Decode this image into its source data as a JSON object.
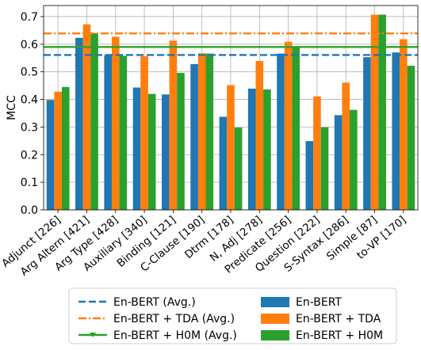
{
  "chart_data": {
    "type": "bar",
    "ylabel": "MCC",
    "xlabel": "",
    "ylim": [
      0,
      0.74
    ],
    "yticks": [
      0.0,
      0.1,
      0.2,
      0.3,
      0.4,
      0.5,
      0.6,
      0.7
    ],
    "ytick_labels": [
      "0.0",
      "0.1",
      "0.2",
      "0.3",
      "0.4",
      "0.5",
      "0.6",
      "0.7"
    ],
    "grid": true,
    "legend_position": "bottom",
    "categories": [
      "Adjunct [226]",
      "Arg Altern [421]",
      "Arg Type [428]",
      "Auxiliary [340]",
      "Binding [121]",
      "C-Clause [190]",
      "Dtrm [178]",
      "N, Adj [278]",
      "Predicate [256]",
      "Question [222]",
      "S-Syntax [286]",
      "Simple [87]",
      "to-VP [170]"
    ],
    "series": [
      {
        "name": "En-BERT",
        "color": "#1f77b4",
        "values": [
          0.398,
          0.623,
          0.561,
          0.443,
          0.418,
          0.528,
          0.337,
          0.439,
          0.566,
          0.249,
          0.343,
          0.553,
          0.57
        ]
      },
      {
        "name": "En-BERT + TDA",
        "color": "#ff7f0e",
        "values": [
          0.428,
          0.672,
          0.627,
          0.557,
          0.613,
          0.567,
          0.452,
          0.539,
          0.609,
          0.411,
          0.461,
          0.707,
          0.618
        ]
      },
      {
        "name": "En-BERT + H0M",
        "color": "#2ca02c",
        "values": [
          0.445,
          0.64,
          0.558,
          0.42,
          0.496,
          0.566,
          0.298,
          0.436,
          0.592,
          0.299,
          0.362,
          0.707,
          0.522
        ]
      }
    ],
    "reference_lines": [
      {
        "name": "En-BERT (Avg.)",
        "value": 0.561,
        "color": "#1f77b4",
        "style": "dashed"
      },
      {
        "name": "En-BERT + TDA (Avg.)",
        "value": 0.639,
        "color": "#ff7f0e",
        "style": "dashdot"
      },
      {
        "name": "En-BERT + H0M (Avg.)",
        "value": 0.59,
        "color": "#2ca02c",
        "style": "solid"
      }
    ]
  }
}
